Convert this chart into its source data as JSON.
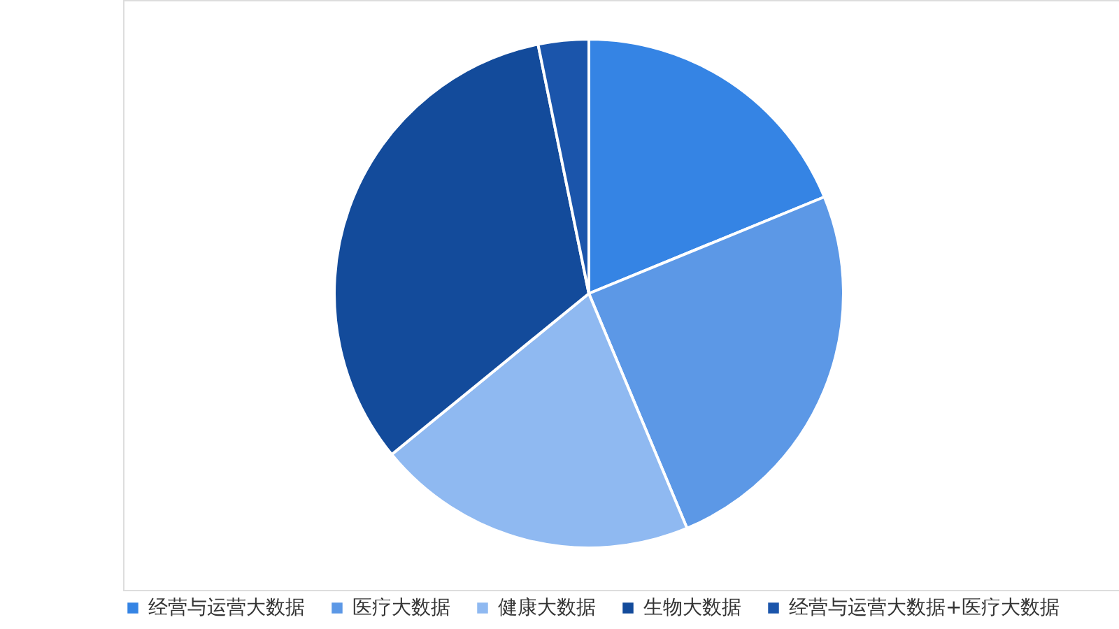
{
  "chart_data": {
    "type": "pie",
    "categories": [
      "经营与运营大数据",
      "医疗大数据",
      "健康大数据",
      "生物大数据",
      "经营与运营大数据+医疗大数据"
    ],
    "values": [
      18.8,
      24.9,
      20.4,
      32.7,
      3.2
    ],
    "colors": [
      "#3584e4",
      "#5c98e6",
      "#8fb9f1",
      "#134b9b",
      "#1b55ab"
    ],
    "legend": "bottom"
  }
}
